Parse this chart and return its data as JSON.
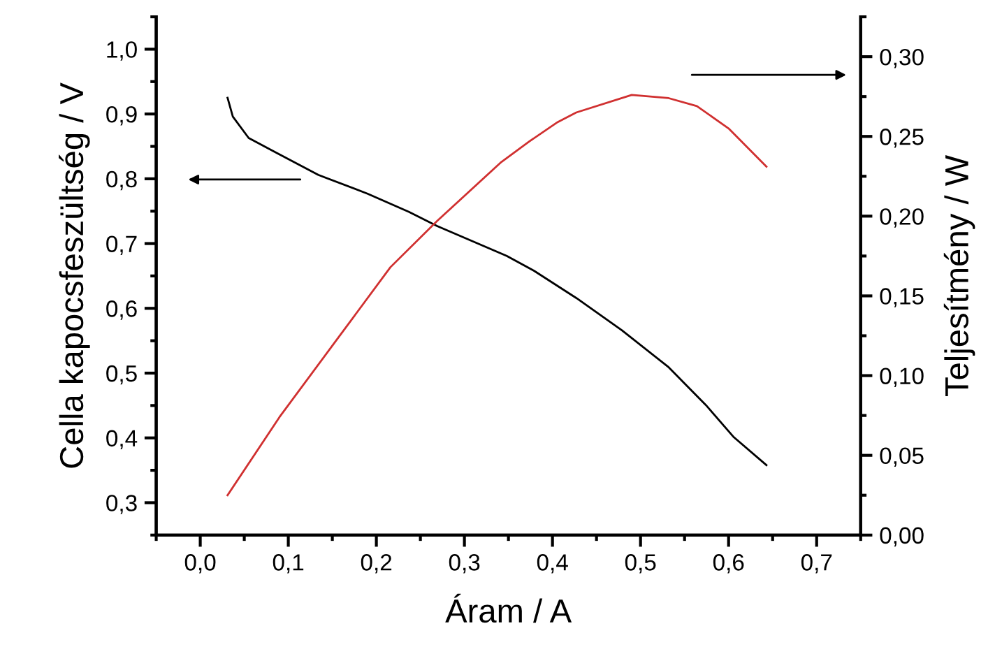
{
  "chart_data": {
    "type": "line",
    "xlabel": "Áram / A",
    "ylabel": "Cella kapocsfeszültség / V",
    "y2label": "Teljesítmény / W",
    "series": [
      {
        "color": "#000000",
        "x": [
          0.031,
          0.037,
          0.055,
          0.084,
          0.134,
          0.19,
          0.237,
          0.269,
          0.348,
          0.379,
          0.427,
          0.479,
          0.532,
          0.574,
          0.606,
          0.643
        ],
        "values": [
          0.925,
          0.896,
          0.863,
          0.842,
          0.806,
          0.777,
          0.749,
          0.727,
          0.681,
          0.658,
          0.616,
          0.566,
          0.509,
          0.451,
          0.401,
          0.358
        ]
      },
      {
        "color": "#d03030",
        "axis": "y2",
        "x": [
          0.031,
          0.09,
          0.153,
          0.216,
          0.269,
          0.342,
          0.374,
          0.406,
          0.427,
          0.49,
          0.532,
          0.564,
          0.6,
          0.643
        ],
        "values": [
          0.025,
          0.074,
          0.121,
          0.168,
          0.197,
          0.234,
          0.247,
          0.259,
          0.265,
          0.276,
          0.274,
          0.269,
          0.255,
          0.231
        ]
      }
    ],
    "xlim": [
      -0.05,
      0.75
    ],
    "xticks": [
      {
        "value": -0.05,
        "label": null
      },
      {
        "value": 0.0,
        "label": "0,0"
      },
      {
        "value": 0.05,
        "label": null
      },
      {
        "value": 0.1,
        "label": "0,1"
      },
      {
        "value": 0.15,
        "label": null
      },
      {
        "value": 0.2,
        "label": "0,2"
      },
      {
        "value": 0.25,
        "label": null
      },
      {
        "value": 0.3,
        "label": "0,3"
      },
      {
        "value": 0.35,
        "label": null
      },
      {
        "value": 0.4,
        "label": "0,4"
      },
      {
        "value": 0.45,
        "label": null
      },
      {
        "value": 0.5,
        "label": "0,5"
      },
      {
        "value": 0.55,
        "label": null
      },
      {
        "value": 0.6,
        "label": "0,6"
      },
      {
        "value": 0.65,
        "label": null
      },
      {
        "value": 0.7,
        "label": "0,7"
      },
      {
        "value": 0.75,
        "label": null
      }
    ],
    "ylim": [
      0.25,
      1.05
    ],
    "yticks": [
      {
        "value": 0.25,
        "label": null
      },
      {
        "value": 0.3,
        "label": "0,3"
      },
      {
        "value": 0.35,
        "label": null
      },
      {
        "value": 0.4,
        "label": "0,4"
      },
      {
        "value": 0.45,
        "label": null
      },
      {
        "value": 0.5,
        "label": "0,5"
      },
      {
        "value": 0.55,
        "label": null
      },
      {
        "value": 0.6,
        "label": "0,6"
      },
      {
        "value": 0.65,
        "label": null
      },
      {
        "value": 0.7,
        "label": "0,7"
      },
      {
        "value": 0.75,
        "label": null
      },
      {
        "value": 0.8,
        "label": "0,8"
      },
      {
        "value": 0.85,
        "label": null
      },
      {
        "value": 0.9,
        "label": "0,9"
      },
      {
        "value": 0.95,
        "label": null
      },
      {
        "value": 1.0,
        "label": "1,0"
      },
      {
        "value": 1.05,
        "label": null
      }
    ],
    "y2lim": [
      0.0,
      0.325
    ],
    "y2ticks": [
      {
        "value": 0.0,
        "label": "0,00"
      },
      {
        "value": 0.025,
        "label": null
      },
      {
        "value": 0.05,
        "label": "0,05"
      },
      {
        "value": 0.075,
        "label": null
      },
      {
        "value": 0.1,
        "label": "0,10"
      },
      {
        "value": 0.125,
        "label": null
      },
      {
        "value": 0.15,
        "label": "0,15"
      },
      {
        "value": 0.175,
        "label": null
      },
      {
        "value": 0.2,
        "label": "0,20"
      },
      {
        "value": 0.225,
        "label": null
      },
      {
        "value": 0.25,
        "label": "0,25"
      },
      {
        "value": 0.275,
        "label": null
      },
      {
        "value": 0.3,
        "label": "0,30"
      },
      {
        "value": 0.325,
        "label": null
      }
    ],
    "grid": false,
    "marker": "none",
    "line_style": "solid"
  }
}
